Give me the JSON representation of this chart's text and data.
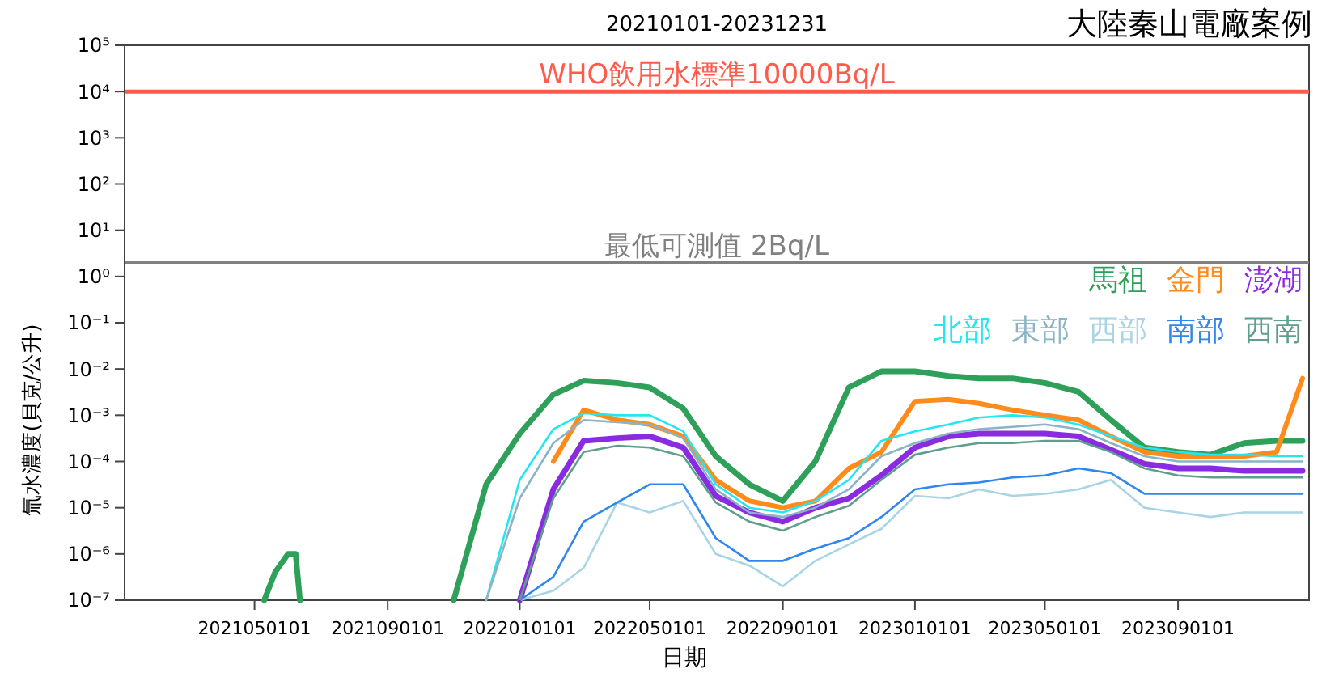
{
  "chart_data": {
    "type": "line",
    "title": "大陸秦山電廠案例",
    "subtitle": "20210101-20231231",
    "xlabel": "日期",
    "ylabel": "氚水濃度(貝克/公升)",
    "x": [
      "2021-12-01",
      "2022-01-01",
      "2022-02-01",
      "2022-03-01",
      "2022-04-01",
      "2022-05-01",
      "2022-06-01",
      "2022-07-01",
      "2022-08-01",
      "2022-09-01",
      "2022-10-01",
      "2022-11-01",
      "2022-12-01",
      "2023-01-01",
      "2023-02-01",
      "2023-03-01",
      "2023-04-01",
      "2023-05-01",
      "2023-06-01",
      "2023-07-01",
      "2023-08-01",
      "2023-09-01",
      "2023-10-01",
      "2023-11-01",
      "2023-12-01",
      "2023-12-25"
    ],
    "series": [
      {
        "name": "馬祖",
        "color": "#2ea05a",
        "x": [
          "2021-05-10",
          "2021-05-20",
          "2021-06-01",
          "2021-06-08",
          "2021-06-12",
          "2021-07-01",
          "2021-11-01",
          "2021-12-01",
          "2022-01-01",
          "2022-02-01",
          "2022-03-01",
          "2022-04-01",
          "2022-05-01",
          "2022-06-01",
          "2022-07-01",
          "2022-08-01",
          "2022-09-01",
          "2022-10-01",
          "2022-11-01",
          "2022-12-01",
          "2023-01-01",
          "2023-02-01",
          "2023-03-01",
          "2023-04-01",
          "2023-05-01",
          "2023-06-01",
          "2023-07-01",
          "2023-08-01",
          "2023-09-01",
          "2023-10-01",
          "2023-11-01",
          "2023-12-01",
          "2023-12-25"
        ],
        "values": [
          1e-07,
          4e-07,
          1e-06,
          1e-06,
          1e-07,
          null,
          1e-07,
          3.2e-05,
          0.0004,
          0.0028,
          0.0056,
          0.005,
          0.004,
          0.0014,
          0.00013,
          3.2e-05,
          1.4e-05,
          0.0001,
          0.004,
          0.0089,
          0.0089,
          0.0071,
          0.0063,
          0.0063,
          0.005,
          0.0032,
          0.00079,
          0.0002,
          0.00016,
          0.00014,
          0.00025,
          0.00028,
          0.00028
        ]
      },
      {
        "name": "金門",
        "color": "#ff8c1a",
        "values": [
          null,
          null,
          0.0001,
          0.0013,
          0.00079,
          0.00063,
          0.00035,
          4e-05,
          1.4e-05,
          1e-05,
          1.4e-05,
          7.1e-05,
          0.00016,
          0.002,
          0.0022,
          0.0018,
          0.0013,
          0.001,
          0.00079,
          0.00035,
          0.00016,
          0.00013,
          0.00013,
          0.00013,
          0.00016,
          0.0063
        ]
      },
      {
        "name": "澎湖",
        "color": "#8a2be2",
        "values": [
          null,
          1e-07,
          2.5e-05,
          0.00028,
          0.00032,
          0.00035,
          0.0002,
          1.8e-05,
          7.9e-06,
          5e-06,
          1e-05,
          1.6e-05,
          5e-05,
          0.0002,
          0.00035,
          0.0004,
          0.0004,
          0.0004,
          0.00035,
          0.00018,
          8.9e-05,
          7.1e-05,
          7.1e-05,
          6.3e-05,
          6.3e-05,
          6.3e-05
        ]
      },
      {
        "name": "北部",
        "color": "#22e6f0",
        "values": [
          1e-07,
          4e-05,
          0.0005,
          0.0011,
          0.001,
          0.001,
          0.00045,
          3.2e-05,
          1e-05,
          7.9e-06,
          1.4e-05,
          4e-05,
          0.00028,
          0.00045,
          0.00063,
          0.00089,
          0.001,
          0.00089,
          0.00063,
          0.00035,
          0.0002,
          0.00016,
          0.00014,
          0.00014,
          0.00013,
          0.00013
        ]
      },
      {
        "name": "東部",
        "color": "#8ab4c6",
        "values": [
          1e-07,
          1.6e-05,
          0.00025,
          0.00079,
          0.00071,
          0.00063,
          0.00032,
          2.5e-05,
          7.9e-06,
          6.3e-06,
          1e-05,
          2.5e-05,
          0.00013,
          0.00025,
          0.0004,
          0.0005,
          0.00056,
          0.00063,
          0.0005,
          0.00025,
          0.00013,
          0.0001,
          0.0001,
          0.0001,
          0.0001,
          0.0001
        ]
      },
      {
        "name": "西部",
        "color": "#a8d4e6",
        "values": [
          null,
          1e-07,
          1.6e-07,
          5e-07,
          1.3e-05,
          7.9e-06,
          1.4e-05,
          1e-06,
          5.6e-07,
          2e-07,
          7.1e-07,
          1.6e-06,
          3.5e-06,
          1.8e-05,
          1.6e-05,
          2.5e-05,
          1.8e-05,
          2e-05,
          2.5e-05,
          4e-05,
          1e-05,
          7.9e-06,
          6.3e-06,
          7.9e-06,
          7.9e-06,
          7.9e-06
        ]
      },
      {
        "name": "南部",
        "color": "#2f86ef",
        "values": [
          null,
          1e-07,
          3.2e-07,
          5e-06,
          1.3e-05,
          3.2e-05,
          3.2e-05,
          2.2e-06,
          7.1e-07,
          7.1e-07,
          1.3e-06,
          2.2e-06,
          6.3e-06,
          2.5e-05,
          3.2e-05,
          3.5e-05,
          4.5e-05,
          5e-05,
          7.1e-05,
          5.6e-05,
          2e-05,
          2e-05,
          2e-05,
          2e-05,
          2e-05,
          2e-05
        ]
      },
      {
        "name": "西南",
        "color": "#5f9e8c",
        "values": [
          null,
          1e-07,
          1.6e-05,
          0.00016,
          0.00022,
          0.0002,
          0.00013,
          1.3e-05,
          5e-06,
          3.2e-06,
          6.3e-06,
          1.1e-05,
          4e-05,
          0.00014,
          0.0002,
          0.00025,
          0.00025,
          0.00028,
          0.00028,
          0.00016,
          7.1e-05,
          5e-05,
          4.5e-05,
          4.5e-05,
          4.5e-05,
          4.5e-05
        ]
      }
    ],
    "log": "y",
    "ylim": [
      1e-07,
      100000.0
    ],
    "yticks": [
      {
        "value": 1e-07,
        "label": "10⁻⁷"
      },
      {
        "value": 1e-06,
        "label": "10⁻⁶"
      },
      {
        "value": 1e-05,
        "label": "10⁻⁵"
      },
      {
        "value": 0.0001,
        "label": "10⁻⁴"
      },
      {
        "value": 0.001,
        "label": "10⁻³"
      },
      {
        "value": 0.01,
        "label": "10⁻²"
      },
      {
        "value": 0.1,
        "label": "10⁻¹"
      },
      {
        "value": 1,
        "label": "10⁰"
      },
      {
        "value": 10,
        "label": "10¹"
      },
      {
        "value": 100,
        "label": "10²"
      },
      {
        "value": 1000,
        "label": "10³"
      },
      {
        "value": 10000,
        "label": "10⁴"
      },
      {
        "value": 100000,
        "label": "10⁵"
      }
    ],
    "xlim": [
      "2021-01-01",
      "2023-12-31"
    ],
    "xticks": [
      {
        "value": "2021-05-01",
        "label": "2021050101"
      },
      {
        "value": "2021-09-01",
        "label": "2021090101"
      },
      {
        "value": "2022-01-01",
        "label": "2022010101"
      },
      {
        "value": "2022-05-01",
        "label": "2022050101"
      },
      {
        "value": "2022-09-01",
        "label": "2022090101"
      },
      {
        "value": "2023-01-01",
        "label": "2023010101"
      },
      {
        "value": "2023-05-01",
        "label": "2023050101"
      },
      {
        "value": "2023-09-01",
        "label": "2023090101"
      }
    ],
    "ref_lines": [
      {
        "axis": "y",
        "value": 10000,
        "label": "WHO飲用水標準10000Bq/L",
        "color": "#ff5a4a"
      },
      {
        "axis": "y",
        "value": 2,
        "label": "最低可測值 2Bq/L",
        "color": "#808080"
      }
    ],
    "legend": "right",
    "grid": false
  }
}
